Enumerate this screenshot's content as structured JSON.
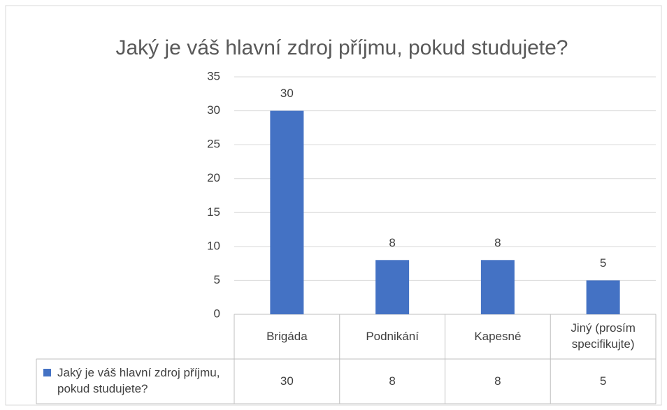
{
  "chart_data": {
    "type": "bar",
    "title": "Jaký je váš hlavní zdroj příjmu, pokud studujete?",
    "categories": [
      "Brigáda",
      "Podnikání",
      "Kapesné",
      "Jiný (prosím specifikujte)"
    ],
    "series": [
      {
        "name": "Jaký je váš hlavní zdroj příjmu, pokud studujete?",
        "color": "#4472c4",
        "values": [
          30,
          8,
          8,
          5
        ]
      }
    ],
    "ylim": [
      0,
      35
    ],
    "yticks": [
      0,
      5,
      10,
      15,
      20,
      25,
      30,
      35
    ],
    "grid": true,
    "data_labels": true,
    "data_table": true
  }
}
